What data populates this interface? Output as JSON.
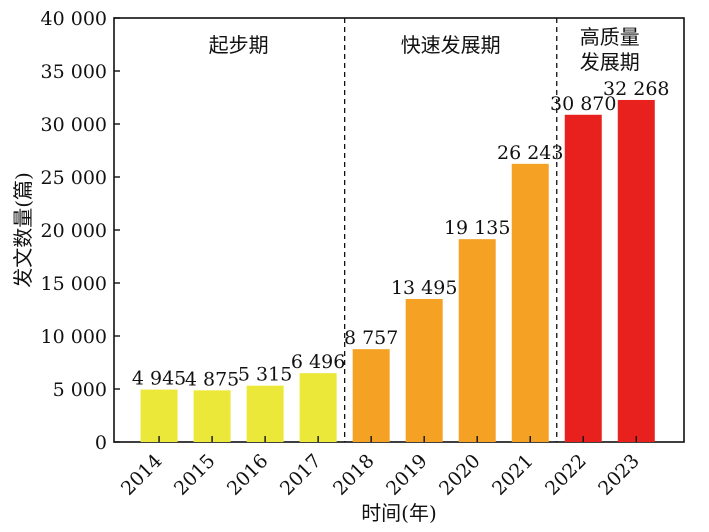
{
  "chart_data": {
    "type": "bar",
    "categories": [
      "2014",
      "2015",
      "2016",
      "2017",
      "2018",
      "2019",
      "2020",
      "2021",
      "2022",
      "2023"
    ],
    "values": [
      4945,
      4875,
      5315,
      6496,
      8757,
      13495,
      19135,
      26243,
      30870,
      32268
    ],
    "value_labels": [
      "4 945",
      "4 875",
      "5 315",
      "6 496",
      "8 757",
      "13 495",
      "19 135",
      "26 243",
      "30 870",
      "32 268"
    ],
    "bar_colors": [
      "#ECE83A",
      "#ECE83A",
      "#ECE83A",
      "#ECE83A",
      "#F4A124",
      "#F4A124",
      "#F4A124",
      "#F4A124",
      "#E8201E",
      "#E8201E"
    ],
    "xlabel": "时间(年)",
    "ylabel": "发文数量(篇)",
    "ylim": [
      0,
      40000
    ],
    "yticks": [
      0,
      5000,
      10000,
      15000,
      20000,
      25000,
      30000,
      35000,
      40000
    ],
    "ytick_labels": [
      "0",
      "5 000",
      "10 000",
      "15 000",
      "20 000",
      "25 000",
      "30 000",
      "35 000",
      "40 000"
    ],
    "grid": false,
    "phases": [
      {
        "lines": [
          "起步期"
        ],
        "start_index": 0,
        "end_index": 3
      },
      {
        "lines": [
          "快速发展期"
        ],
        "start_index": 4,
        "end_index": 7
      },
      {
        "lines": [
          "高质量",
          "发展期"
        ],
        "start_index": 8,
        "end_index": 9
      }
    ],
    "phase_dividers_after_index": [
      3,
      7
    ],
    "divider_style": "dashed"
  }
}
